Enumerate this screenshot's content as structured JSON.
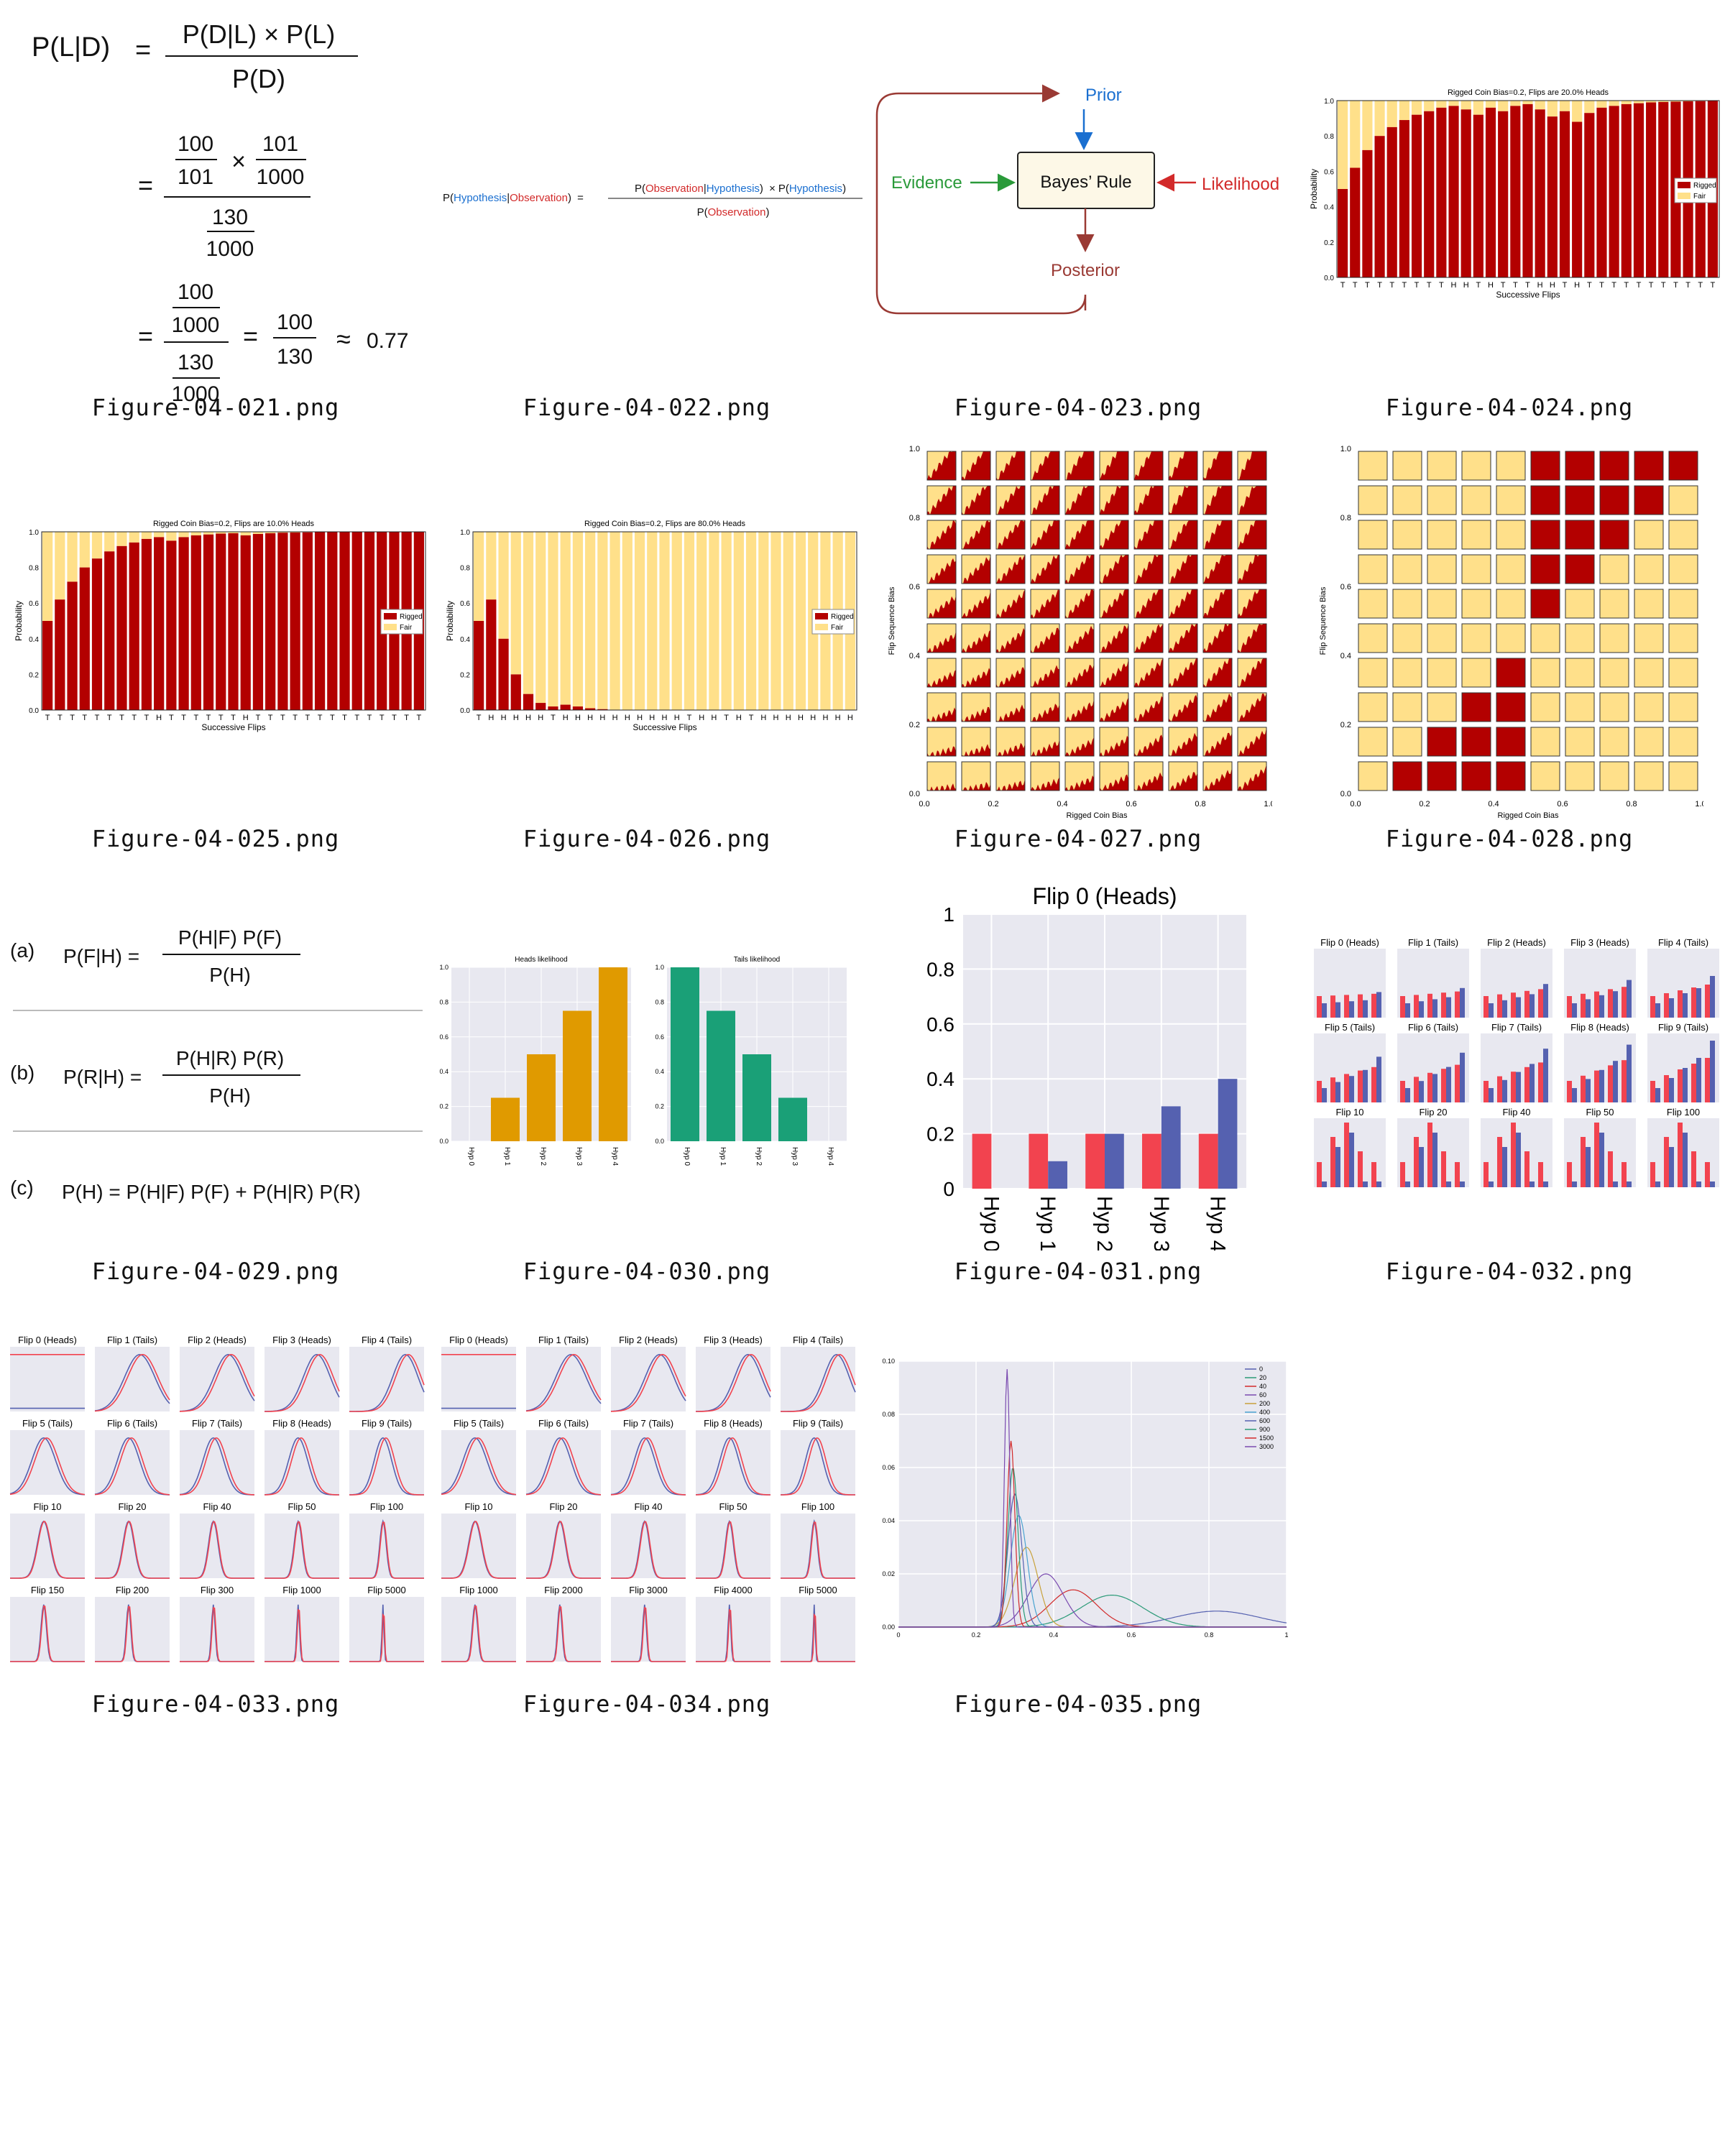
{
  "captions": [
    "Figure-04-021.png",
    "Figure-04-022.png",
    "Figure-04-023.png",
    "Figure-04-024.png",
    "Figure-04-025.png",
    "Figure-04-026.png",
    "Figure-04-027.png",
    "Figure-04-028.png",
    "Figure-04-029.png",
    "Figure-04-030.png",
    "Figure-04-031.png",
    "Figure-04-032.png",
    "Figure-04-033.png",
    "Figure-04-034.png",
    "Figure-04-035.png"
  ],
  "colors": {
    "rigged": "#b30000",
    "fair": "#ffe08a",
    "red": "#f2434f",
    "blue": "#5561b0",
    "orange": "#e09a00",
    "green": "#1aa077",
    "grid": "#e8e8f0",
    "arrow_brown": "#9a3a34",
    "arrow_blue": "#1a6fd0",
    "arrow_green": "#2a9a3a",
    "arrow_red": "#d22a2a"
  },
  "fig21": {
    "lhs": "P(L|D)",
    "num1": "P(D|L) × P(L)",
    "den1": "P(D)",
    "a": "100",
    "b": "101",
    "c": "101",
    "d": "1000",
    "e": "130",
    "f": "1000",
    "g": "100",
    "h": "1000",
    "i": "130",
    "j": "1000",
    "k": "100",
    "l": "130",
    "approx": "≈",
    "result": "0.77",
    "eq": "=",
    "times": "×"
  },
  "fig22": {
    "p": "P(",
    "h": "Hypothesis",
    "bar": "|",
    "o": "Observation",
    "close": ")",
    "eq": "=",
    "times": "×"
  },
  "fig23": {
    "prior": "Prior",
    "rule": "Bayes’ Rule",
    "evidence": "Evidence",
    "likelihood": "Likelihood",
    "posterior": "Posterior"
  },
  "fig24": {
    "title": "Rigged Coin Bias=0.2, Flips are 20.0% Heads",
    "xlabel": "Successive Flips",
    "ylabel": "Probability",
    "legend": [
      "Rigged",
      "Fair"
    ],
    "flips": "TTTTTTTTTHHTHTTTHHTHTTTTTTTTTTT",
    "values": [
      0.5,
      0.62,
      0.72,
      0.8,
      0.85,
      0.89,
      0.92,
      0.94,
      0.96,
      0.97,
      0.95,
      0.92,
      0.96,
      0.94,
      0.97,
      0.98,
      0.95,
      0.91,
      0.94,
      0.88,
      0.93,
      0.96,
      0.97,
      0.98,
      0.985,
      0.99,
      0.992,
      0.994,
      0.996,
      0.997,
      0.998
    ]
  },
  "fig25": {
    "title": "Rigged Coin Bias=0.2, Flips are 10.0% Heads",
    "xlabel": "Successive Flips",
    "ylabel": "Probability",
    "legend": [
      "Rigged",
      "Fair"
    ],
    "flips": "TTTTTTTTTHTTTTTTHTTTTTTTTTTTTTT",
    "values": [
      0.5,
      0.62,
      0.72,
      0.8,
      0.85,
      0.89,
      0.92,
      0.94,
      0.96,
      0.97,
      0.95,
      0.97,
      0.98,
      0.985,
      0.99,
      0.992,
      0.98,
      0.988,
      0.992,
      0.995,
      0.996,
      0.997,
      0.998,
      0.998,
      0.999,
      0.999,
      0.999,
      0.999,
      1,
      1,
      1
    ]
  },
  "fig26": {
    "title": "Rigged Coin Bias=0.2, Flips are 80.0% Heads",
    "xlabel": "Successive Flips",
    "ylabel": "Probability",
    "legend": [
      "Rigged",
      "Fair"
    ],
    "flips": "THHHHHTHHHHHHHHHHTHHTHTHHHHHHHH",
    "values": [
      0.5,
      0.62,
      0.4,
      0.2,
      0.09,
      0.04,
      0.02,
      0.03,
      0.02,
      0.01,
      0.005,
      0,
      0,
      0,
      0,
      0,
      0,
      0,
      0,
      0,
      0,
      0,
      0,
      0,
      0,
      0,
      0,
      0,
      0,
      0,
      0
    ]
  },
  "fig27": {
    "xlabel": "Rigged Coin Bias",
    "ylabel": "Flip Sequence Bias",
    "ticks": [
      "0.0",
      "0.2",
      "0.4",
      "0.6",
      "0.8",
      "1.0"
    ]
  },
  "fig28": {
    "xlabel": "Rigged Coin Bias",
    "ylabel": "Flip Sequence Bias",
    "ticks": [
      "0.0",
      "0.2",
      "0.4",
      "0.6",
      "0.8",
      "1.0"
    ]
  },
  "fig29": {
    "a": "(a)",
    "b": "(b)",
    "c": "(c)",
    "a_lhs": "P(F|H) =",
    "a_num": "P(H|F)  P(F)",
    "a_den": "P(H)",
    "b_lhs": "P(R|H) =",
    "b_num": "P(H|R)  P(R)",
    "b_den": "P(H)",
    "c_eq": "P(H) = P(H|F)  P(F)  +  P(H|R)  P(R)"
  },
  "fig30": {
    "heads_title": "Heads likelihood",
    "tails_title": "Tails likelihood",
    "categories": [
      "Hyp 0",
      "Hyp 1",
      "Hyp 2",
      "Hyp 3",
      "Hyp 4"
    ],
    "heads": [
      0,
      0.25,
      0.5,
      0.75,
      1.0
    ],
    "tails": [
      1.0,
      0.75,
      0.5,
      0.25,
      0
    ],
    "yticks": [
      "0.0",
      "0.2",
      "0.4",
      "0.6",
      "0.8",
      "1.0"
    ]
  },
  "chart_data": {
    "type": "bar",
    "title": "Flip 0 (Heads)",
    "categories": [
      "Hyp 0",
      "Hyp 1",
      "Hyp 2",
      "Hyp 3",
      "Hyp 4"
    ],
    "series": [
      {
        "values": [
          0.2,
          0.2,
          0.2,
          0.2,
          0.2
        ]
      },
      {
        "values": [
          0,
          0.1,
          0.2,
          0.3,
          0.4
        ]
      }
    ],
    "ylim": [
      0,
      1
    ],
    "yticks": [
      "0",
      "0.2",
      "0.4",
      "0.6",
      "0.8",
      "1"
    ]
  },
  "fig32": {
    "titles": [
      "Flip 0 (Heads)",
      "Flip 1 (Tails)",
      "Flip 2 (Heads)",
      "Flip 3 (Heads)",
      "Flip 4 (Tails)",
      "Flip 5 (Tails)",
      "Flip 6 (Tails)",
      "Flip 7 (Tails)",
      "Flip 8 (Heads)",
      "Flip 9 (Tails)",
      "Flip 10",
      "Flip 20",
      "Flip 40",
      "Flip 50",
      "Flip 100"
    ]
  },
  "fig33": {
    "titles": [
      "Flip 0 (Heads)",
      "Flip 1 (Tails)",
      "Flip 2 (Heads)",
      "Flip 3 (Heads)",
      "Flip 4 (Tails)",
      "Flip 5 (Tails)",
      "Flip 6 (Tails)",
      "Flip 7 (Tails)",
      "Flip 8 (Heads)",
      "Flip 9 (Tails)",
      "Flip 10",
      "Flip 20",
      "Flip 40",
      "Flip 50",
      "Flip 100",
      "Flip 150",
      "Flip 200",
      "Flip 300",
      "Flip 1000",
      "Flip 5000"
    ]
  },
  "fig34": {
    "titles": [
      "Flip 0 (Heads)",
      "Flip 1 (Tails)",
      "Flip 2 (Heads)",
      "Flip 3 (Heads)",
      "Flip 4 (Tails)",
      "Flip 5 (Tails)",
      "Flip 6 (Tails)",
      "Flip 7 (Tails)",
      "Flip 8 (Heads)",
      "Flip 9 (Tails)",
      "Flip 10",
      "Flip 20",
      "Flip 40",
      "Flip 50",
      "Flip 100",
      "Flip 1000",
      "Flip 2000",
      "Flip 3000",
      "Flip 4000",
      "Flip 5000"
    ]
  },
  "fig35": {
    "legend": [
      "0",
      "20",
      "40",
      "60",
      "200",
      "400",
      "600",
      "900",
      "1500",
      "3000"
    ],
    "yticks": [
      "0.00",
      "0.02",
      "0.04",
      "0.06",
      "0.08",
      "0.10"
    ],
    "xticks": [
      "0",
      "0.2",
      "0.4",
      "0.6",
      "0.8",
      "1"
    ]
  }
}
